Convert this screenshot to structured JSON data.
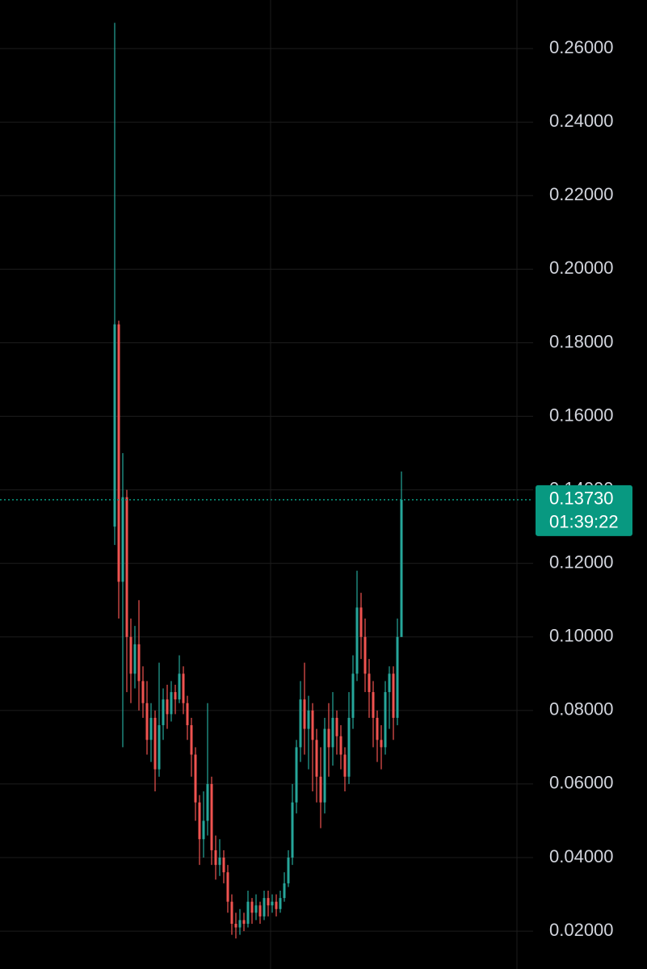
{
  "chart_data": {
    "type": "candlestick",
    "categories": [
      null,
      null,
      null,
      null,
      null,
      null,
      null,
      null,
      null,
      null,
      null,
      null,
      null,
      null,
      null,
      null,
      null,
      null,
      null,
      null,
      null,
      null,
      null,
      null,
      null,
      null,
      null,
      null,
      null,
      null,
      null,
      null,
      null,
      null,
      null,
      null,
      null,
      null,
      null,
      null,
      null,
      null,
      null,
      null,
      null,
      null,
      null,
      null,
      null,
      null,
      null,
      null,
      null,
      null,
      null,
      null,
      null,
      null,
      null,
      null,
      null,
      null,
      null,
      null,
      null,
      null,
      null,
      null,
      null,
      null,
      null,
      null
    ],
    "open": [
      0.13,
      0.185,
      0.115,
      0.138,
      0.1,
      0.09,
      0.098,
      0.088,
      0.082,
      0.072,
      0.078,
      0.064,
      0.076,
      0.083,
      0.079,
      0.085,
      0.083,
      0.09,
      0.082,
      0.076,
      0.068,
      0.055,
      0.045,
      0.05,
      0.06,
      0.042,
      0.038,
      0.04,
      0.036,
      0.028,
      0.022,
      0.021,
      0.023,
      0.022,
      0.028,
      0.025,
      0.027,
      0.024,
      0.029,
      0.027,
      0.028,
      0.026,
      0.029,
      0.033,
      0.04,
      0.055,
      0.07,
      0.083,
      0.075,
      0.08,
      0.072,
      0.062,
      0.055,
      0.075,
      0.07,
      0.078,
      0.073,
      0.068,
      0.062,
      0.078,
      0.09,
      0.108,
      0.1,
      0.09,
      0.085,
      0.078,
      0.072,
      0.07,
      0.085,
      0.09,
      0.078,
      0.1
    ],
    "high": [
      0.267,
      0.186,
      0.15,
      0.14,
      0.105,
      0.103,
      0.11,
      0.092,
      0.088,
      0.082,
      0.08,
      0.093,
      0.086,
      0.087,
      0.088,
      0.087,
      0.095,
      0.092,
      0.084,
      0.078,
      0.07,
      0.057,
      0.058,
      0.082,
      0.062,
      0.046,
      0.045,
      0.042,
      0.038,
      0.03,
      0.025,
      0.026,
      0.025,
      0.031,
      0.029,
      0.03,
      0.028,
      0.031,
      0.031,
      0.03,
      0.03,
      0.031,
      0.036,
      0.042,
      0.06,
      0.072,
      0.088,
      0.093,
      0.084,
      0.082,
      0.075,
      0.07,
      0.078,
      0.082,
      0.085,
      0.08,
      0.076,
      0.07,
      0.085,
      0.095,
      0.118,
      0.112,
      0.105,
      0.094,
      0.088,
      0.08,
      0.076,
      0.088,
      0.092,
      0.092,
      0.105,
      0.145
    ],
    "low": [
      0.125,
      0.105,
      0.07,
      0.085,
      0.082,
      0.086,
      0.08,
      0.078,
      0.068,
      0.066,
      0.058,
      0.062,
      0.072,
      0.075,
      0.077,
      0.079,
      0.082,
      0.079,
      0.072,
      0.062,
      0.05,
      0.038,
      0.04,
      0.046,
      0.038,
      0.034,
      0.035,
      0.033,
      0.025,
      0.019,
      0.018,
      0.019,
      0.02,
      0.021,
      0.022,
      0.023,
      0.022,
      0.023,
      0.024,
      0.025,
      0.024,
      0.025,
      0.028,
      0.032,
      0.038,
      0.052,
      0.066,
      0.068,
      0.064,
      0.058,
      0.055,
      0.048,
      0.052,
      0.062,
      0.065,
      0.068,
      0.064,
      0.058,
      0.06,
      0.075,
      0.088,
      0.094,
      0.085,
      0.078,
      0.07,
      0.066,
      0.064,
      0.068,
      0.075,
      0.072,
      0.076,
      0.1
    ],
    "close": [
      0.185,
      0.115,
      0.138,
      0.1,
      0.09,
      0.098,
      0.088,
      0.082,
      0.072,
      0.078,
      0.064,
      0.076,
      0.083,
      0.079,
      0.085,
      0.083,
      0.09,
      0.082,
      0.076,
      0.068,
      0.055,
      0.045,
      0.05,
      0.06,
      0.042,
      0.038,
      0.04,
      0.036,
      0.028,
      0.022,
      0.021,
      0.023,
      0.022,
      0.028,
      0.025,
      0.027,
      0.024,
      0.029,
      0.027,
      0.028,
      0.026,
      0.029,
      0.033,
      0.04,
      0.055,
      0.07,
      0.083,
      0.075,
      0.08,
      0.072,
      0.062,
      0.055,
      0.075,
      0.07,
      0.078,
      0.073,
      0.068,
      0.062,
      0.078,
      0.09,
      0.108,
      0.1,
      0.09,
      0.085,
      0.078,
      0.072,
      0.07,
      0.085,
      0.09,
      0.078,
      0.1,
      0.1373
    ],
    "up_color": "#26a69a",
    "down_color": "#ef5350",
    "ylim": [
      0.0097,
      0.2732
    ],
    "yticks": [
      {
        "value": 0.02,
        "label": "0.02000"
      },
      {
        "value": 0.04,
        "label": "0.04000"
      },
      {
        "value": 0.06,
        "label": "0.06000"
      },
      {
        "value": 0.08,
        "label": "0.08000"
      },
      {
        "value": 0.1,
        "label": "0.10000"
      },
      {
        "value": 0.12,
        "label": "0.12000"
      },
      {
        "value": 0.14,
        "label": "0.14000"
      },
      {
        "value": 0.16,
        "label": "0.16000"
      },
      {
        "value": 0.18,
        "label": "0.18000"
      },
      {
        "value": 0.2,
        "label": "0.20000"
      },
      {
        "value": 0.22,
        "label": "0.22000"
      },
      {
        "value": 0.24,
        "label": "0.24000"
      },
      {
        "value": 0.26,
        "label": "0.26000"
      }
    ],
    "grid": true,
    "last_price": {
      "value": 0.1373,
      "label": "0.13730"
    },
    "countdown": "01:39:22",
    "price_tag_color": "#089981"
  }
}
